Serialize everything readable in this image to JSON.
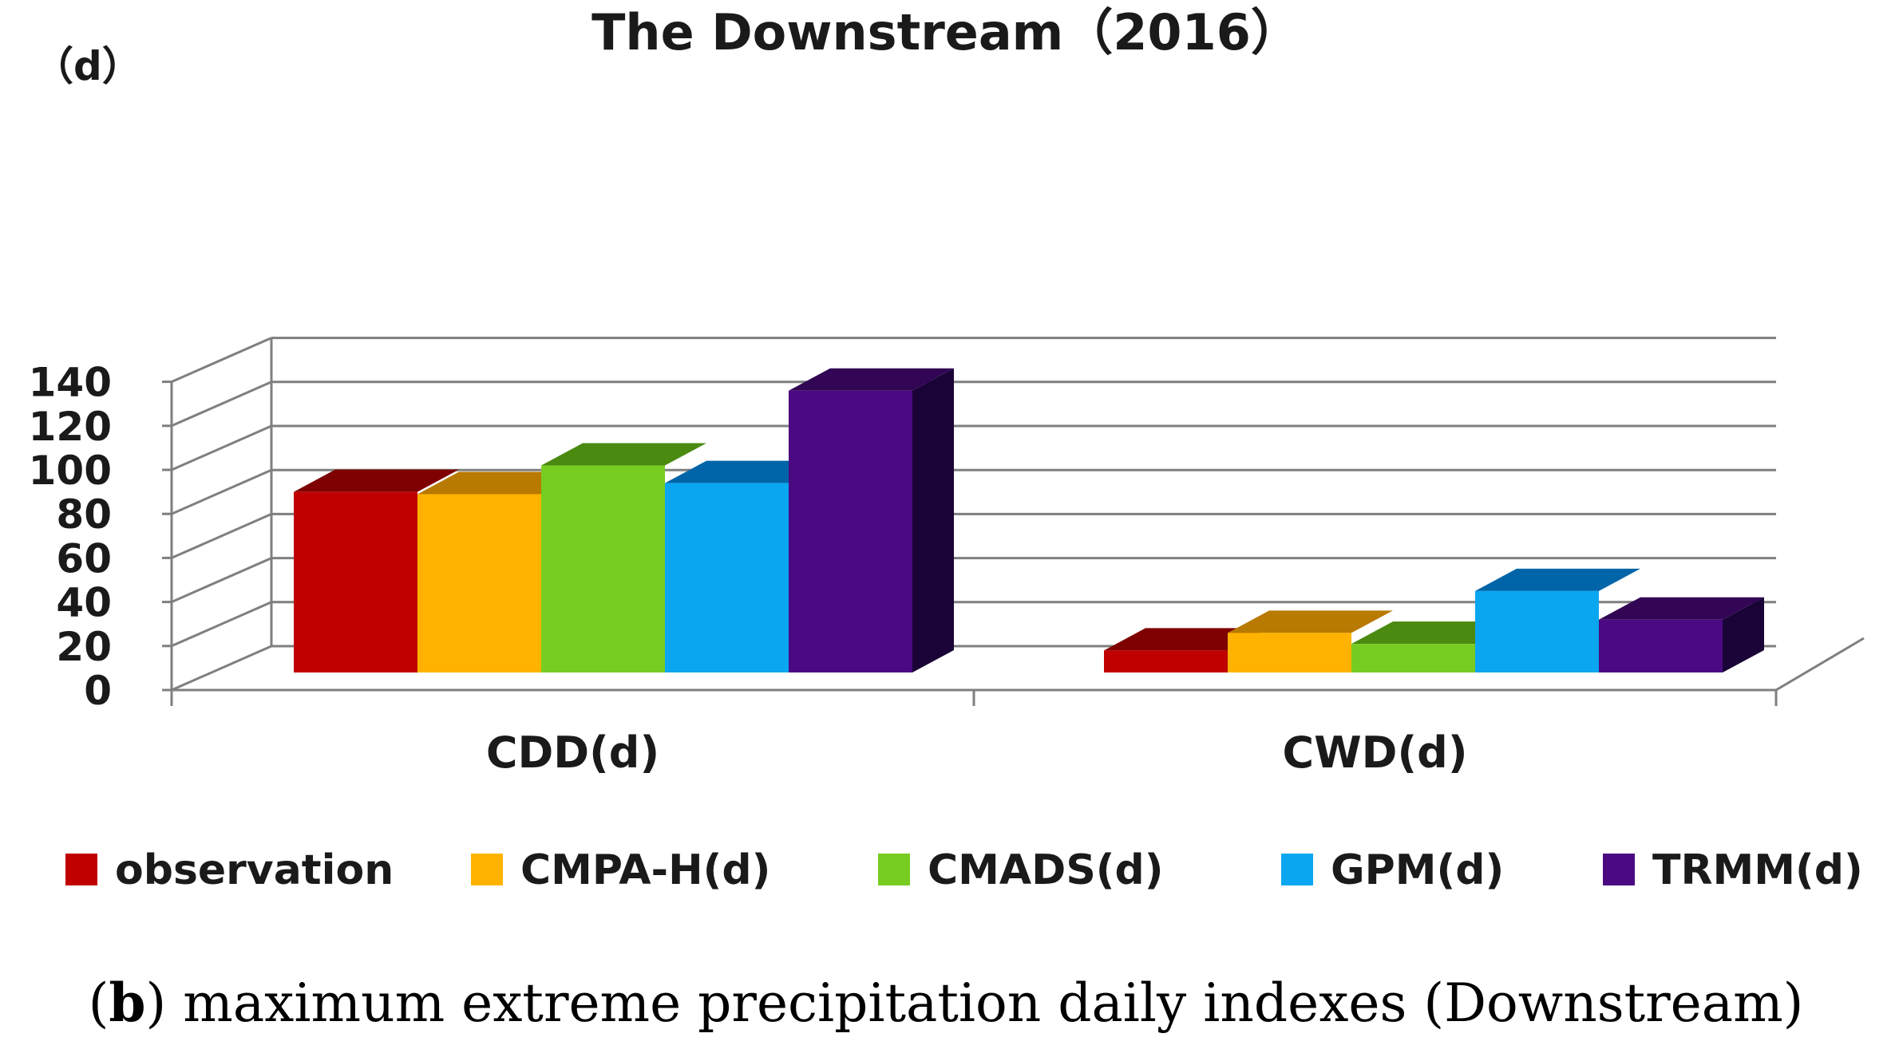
{
  "chart_data": {
    "type": "bar",
    "title": "The Downstream（2016）",
    "ylabel": "（d）",
    "xlabel": "",
    "ylim": [
      0,
      140
    ],
    "yticks": [
      0,
      20,
      40,
      60,
      80,
      100,
      120,
      140
    ],
    "categories": [
      "CDD(d)",
      "CWD(d)"
    ],
    "series": [
      {
        "name": "observation",
        "color": "#c00000",
        "top": "#7f0000",
        "side": "#600000",
        "values": [
          82,
          10
        ]
      },
      {
        "name": "CMPA-H(d)",
        "color": "#ffb300",
        "top": "#b87a00",
        "side": "#8a5c00",
        "values": [
          81,
          18
        ]
      },
      {
        "name": "CMADS(d)",
        "color": "#77cc22",
        "top": "#4a8a10",
        "side": "#3a6a0c",
        "values": [
          94,
          13
        ]
      },
      {
        "name": "GPM(d)",
        "color": "#0aa6f0",
        "top": "#0065a8",
        "side": "#004e82",
        "values": [
          86,
          37
        ]
      },
      {
        "name": "TRMM(d)",
        "color": "#4b0a82",
        "top": "#320655",
        "side": "#1a0336",
        "values": [
          128,
          24
        ]
      }
    ],
    "legend_position": "bottom",
    "grid": true
  },
  "caption": {
    "label": "b",
    "open": "(",
    "close": ")",
    "text": " maximum extreme precipitation daily indexes (Downstream)"
  }
}
